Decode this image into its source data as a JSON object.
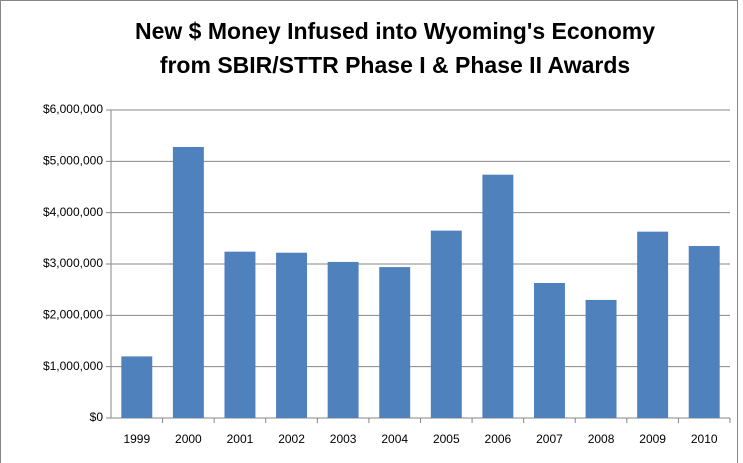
{
  "chart_data": {
    "type": "bar",
    "title": [
      "New $ Money Infused into Wyoming's Economy",
      "from SBIR/STTR Phase I & Phase II Awards"
    ],
    "categories": [
      "1999",
      "2000",
      "2001",
      "2002",
      "2003",
      "2004",
      "2005",
      "2006",
      "2007",
      "2008",
      "2009",
      "2010"
    ],
    "values": [
      1200000,
      5280000,
      3240000,
      3220000,
      3040000,
      2940000,
      3650000,
      4740000,
      2630000,
      2300000,
      3630000,
      3350000
    ],
    "color": "#4f81bd",
    "ylim": [
      0,
      6000000
    ],
    "yticks": [
      {
        "value": 0,
        "label": "$0"
      },
      {
        "value": 1000000,
        "label": "$1,000,000"
      },
      {
        "value": 2000000,
        "label": "$2,000,000"
      },
      {
        "value": 3000000,
        "label": "$3,000,000"
      },
      {
        "value": 4000000,
        "label": "$4,000,000"
      },
      {
        "value": 5000000,
        "label": "$5,000,000"
      },
      {
        "value": 6000000,
        "label": "$6,000,000"
      }
    ],
    "grid": true
  }
}
